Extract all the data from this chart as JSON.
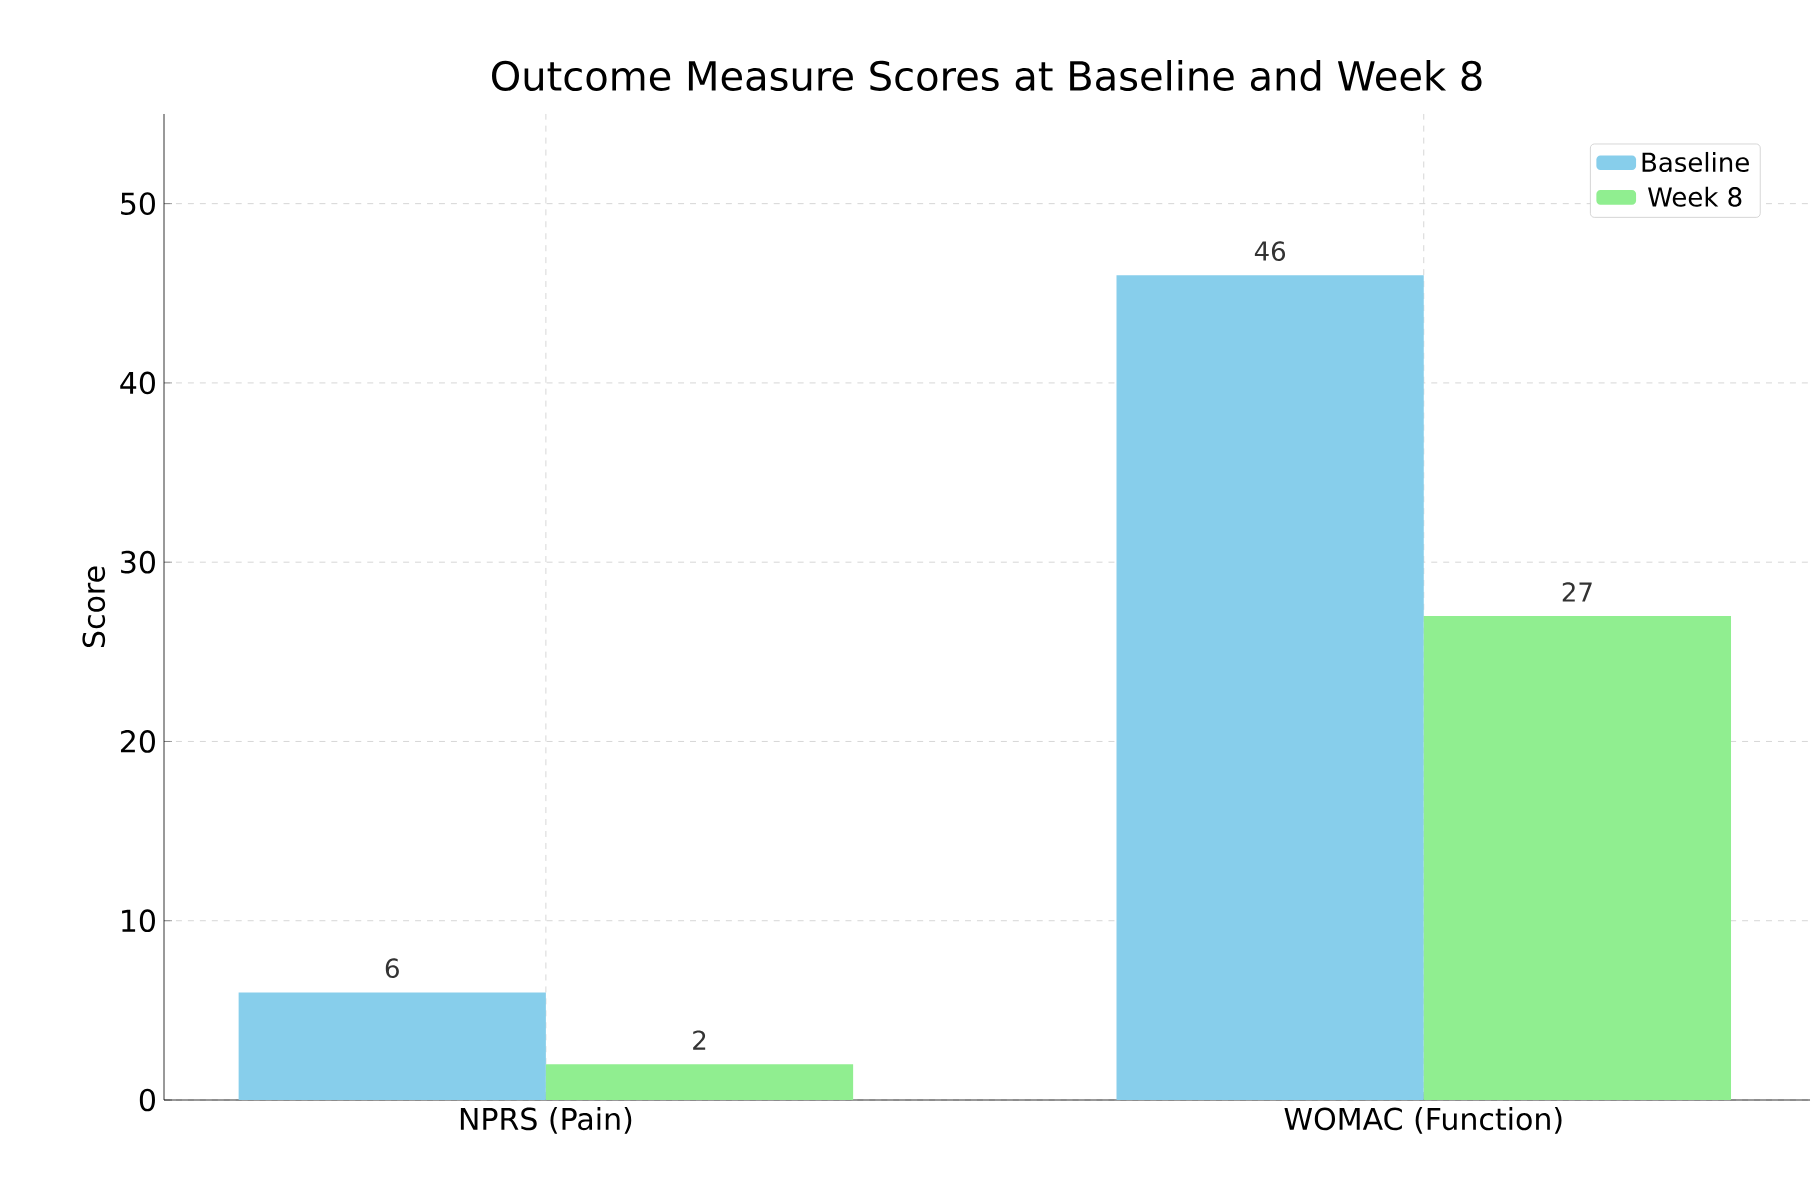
{
  "chart_data": {
    "type": "bar",
    "title": "Outcome Measure Scores at Baseline and Week 8",
    "ylabel": "Score",
    "categories": [
      "NPRS (Pain)",
      "WOMAC (Function)"
    ],
    "series": [
      {
        "name": "Baseline",
        "color": "#87ceeb",
        "values": [
          6,
          46
        ]
      },
      {
        "name": "Week 8",
        "color": "#90ee90",
        "values": [
          2,
          27
        ]
      }
    ],
    "ylim": [
      0,
      55
    ],
    "yticks": [
      0,
      10,
      20,
      30,
      40,
      50
    ],
    "grid": true,
    "legend": "top right",
    "data_labels": true
  }
}
